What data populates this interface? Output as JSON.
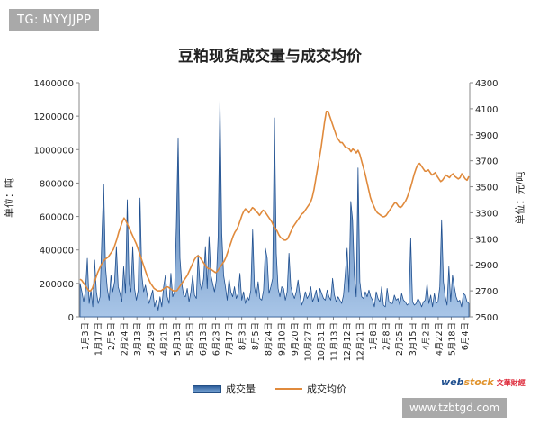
{
  "watermark_top": "TG: MYYJJPP",
  "watermark_bottom": "www.tzbtgd.com",
  "chart_data": {
    "type": "area",
    "title": "豆粕现货成交量与成交均价",
    "ylabel_left": "单位：吨",
    "ylabel_right": "单位：元/吨",
    "ylim_left": [
      0,
      1400000
    ],
    "ylim_right": [
      2500,
      4300
    ],
    "yticks_left": [
      "0",
      "200000",
      "400000",
      "600000",
      "800000",
      "1000000",
      "1200000",
      "1400000"
    ],
    "yticks_right": [
      "2500",
      "2700",
      "2900",
      "3100",
      "3300",
      "3500",
      "3700",
      "3900",
      "4100",
      "4300"
    ],
    "x_labels": [
      "1月3日",
      "1月17日",
      "2月5日",
      "2月24日",
      "3月13日",
      "3月29日",
      "4月21日",
      "5月13日",
      "5月25日",
      "6月13日",
      "6月23日",
      "7月17日",
      "8月3日",
      "8月5日",
      "8月24日",
      "9月10日",
      "9月20日",
      "10月27日",
      "10月31日",
      "11月13日",
      "12月12日",
      "12月21日",
      "1月8日",
      "2月8日",
      "2月25日",
      "3月15日",
      "4月2日",
      "4月22日",
      "5月18日",
      "6月4日"
    ],
    "grid": false,
    "legend": "bottom",
    "series": [
      {
        "name": "成交量",
        "axis": "left",
        "color": "#2e5e9b",
        "values": [
          200000,
          150000,
          90000,
          160000,
          350000,
          80000,
          160000,
          60000,
          340000,
          150000,
          80000,
          120000,
          470000,
          790000,
          300000,
          170000,
          100000,
          250000,
          150000,
          210000,
          420000,
          180000,
          140000,
          90000,
          300000,
          140000,
          700000,
          200000,
          150000,
          420000,
          170000,
          100000,
          160000,
          710000,
          250000,
          150000,
          190000,
          130000,
          80000,
          120000,
          160000,
          60000,
          100000,
          40000,
          120000,
          60000,
          180000,
          250000,
          120000,
          80000,
          260000,
          120000,
          150000,
          540000,
          1070000,
          350000,
          200000,
          130000,
          120000,
          170000,
          90000,
          150000,
          250000,
          130000,
          110000,
          370000,
          200000,
          160000,
          230000,
          420000,
          170000,
          480000,
          250000,
          200000,
          150000,
          220000,
          480000,
          1310000,
          500000,
          250000,
          180000,
          100000,
          230000,
          150000,
          120000,
          180000,
          110000,
          140000,
          260000,
          100000,
          150000,
          80000,
          120000,
          100000,
          160000,
          520000,
          180000,
          120000,
          210000,
          110000,
          100000,
          160000,
          410000,
          350000,
          140000,
          180000,
          230000,
          1190000,
          380000,
          170000,
          120000,
          180000,
          170000,
          100000,
          150000,
          380000,
          180000,
          140000,
          110000,
          150000,
          220000,
          130000,
          70000,
          100000,
          150000,
          110000,
          130000,
          180000,
          90000,
          120000,
          160000,
          90000,
          170000,
          140000,
          110000,
          100000,
          160000,
          120000,
          100000,
          230000,
          130000,
          90000,
          120000,
          100000,
          80000,
          130000,
          260000,
          410000,
          150000,
          690000,
          580000,
          250000,
          120000,
          890000,
          210000,
          120000,
          110000,
          150000,
          120000,
          160000,
          120000,
          100000,
          60000,
          150000,
          110000,
          90000,
          180000,
          70000,
          60000,
          170000,
          90000,
          80000,
          80000,
          130000,
          100000,
          110000,
          70000,
          140000,
          100000,
          90000,
          70000,
          80000,
          470000,
          90000,
          70000,
          80000,
          110000,
          90000,
          60000,
          90000,
          100000,
          200000,
          80000,
          130000,
          60000,
          140000,
          80000,
          90000,
          180000,
          580000,
          210000,
          120000,
          70000,
          300000,
          90000,
          250000,
          180000,
          120000,
          90000,
          100000,
          60000,
          140000,
          130000,
          90000,
          80000
        ]
      },
      {
        "name": "成交均价",
        "axis": "right",
        "color": "#e08a3c",
        "values": [
          2790,
          2780,
          2760,
          2740,
          2720,
          2700,
          2700,
          2720,
          2760,
          2800,
          2840,
          2870,
          2900,
          2920,
          2940,
          2950,
          2960,
          2980,
          3000,
          3020,
          3060,
          3100,
          3150,
          3190,
          3230,
          3260,
          3240,
          3210,
          3180,
          3150,
          3120,
          3090,
          3060,
          3020,
          2980,
          2940,
          2900,
          2860,
          2820,
          2790,
          2760,
          2740,
          2720,
          2710,
          2700,
          2700,
          2700,
          2710,
          2720,
          2730,
          2730,
          2720,
          2710,
          2700,
          2700,
          2700,
          2720,
          2740,
          2760,
          2780,
          2800,
          2820,
          2850,
          2880,
          2910,
          2940,
          2960,
          2970,
          2960,
          2940,
          2920,
          2900,
          2880,
          2870,
          2870,
          2860,
          2850,
          2840,
          2850,
          2870,
          2890,
          2910,
          2930,
          2960,
          3000,
          3040,
          3080,
          3120,
          3150,
          3170,
          3200,
          3240,
          3280,
          3310,
          3330,
          3320,
          3300,
          3320,
          3340,
          3330,
          3310,
          3300,
          3280,
          3300,
          3320,
          3310,
          3290,
          3270,
          3250,
          3230,
          3200,
          3180,
          3160,
          3130,
          3110,
          3100,
          3090,
          3090,
          3100,
          3130,
          3160,
          3190,
          3210,
          3230,
          3250,
          3270,
          3290,
          3300,
          3320,
          3340,
          3360,
          3380,
          3420,
          3480,
          3560,
          3640,
          3720,
          3800,
          3900,
          4000,
          4080,
          4080,
          4040,
          4000,
          3960,
          3920,
          3880,
          3860,
          3840,
          3840,
          3820,
          3800,
          3800,
          3790,
          3770,
          3790,
          3780,
          3760,
          3780,
          3750,
          3700,
          3650,
          3600,
          3540,
          3480,
          3420,
          3380,
          3350,
          3320,
          3300,
          3290,
          3280,
          3270,
          3270,
          3280,
          3300,
          3320,
          3340,
          3360,
          3380,
          3370,
          3350,
          3340,
          3350,
          3370,
          3390,
          3420,
          3460,
          3500,
          3550,
          3600,
          3640,
          3670,
          3680,
          3660,
          3640,
          3620,
          3620,
          3630,
          3610,
          3590,
          3600,
          3610,
          3580,
          3560,
          3540,
          3550,
          3570,
          3590,
          3580,
          3570,
          3590,
          3600,
          3580,
          3570,
          3560,
          3570,
          3600,
          3580,
          3560,
          3550,
          3580
        ]
      }
    ]
  }
}
